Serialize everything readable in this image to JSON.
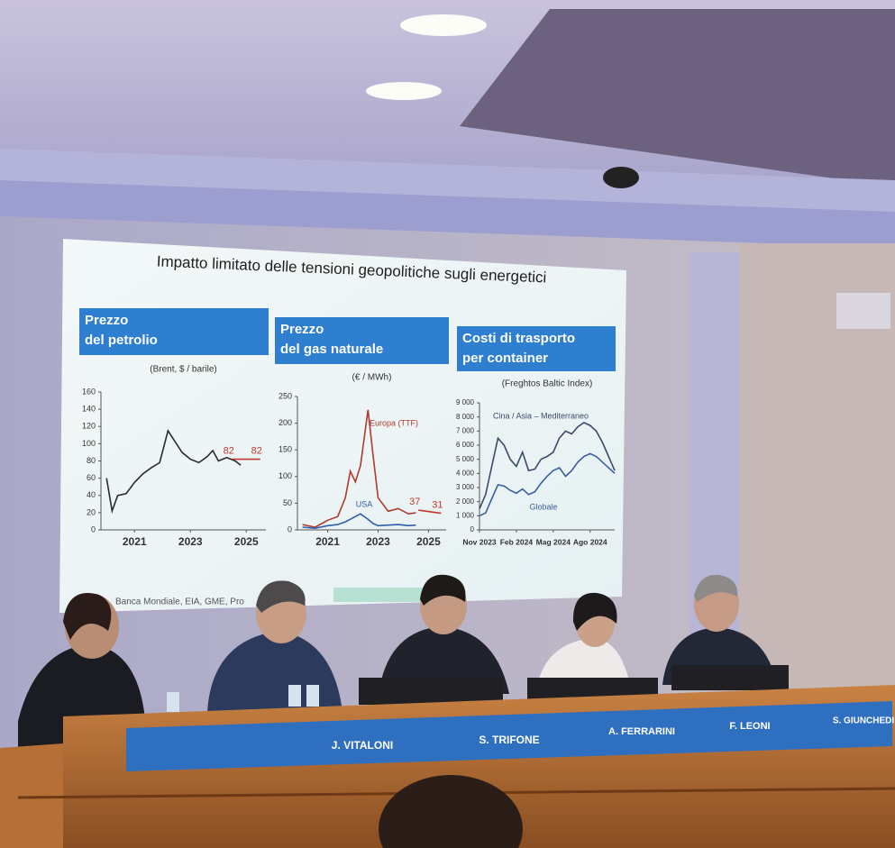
{
  "slide": {
    "title": "Impatto limitato delle tensioni geopolitiche sugli energetici",
    "source": "Banca Mondiale, EIA, GME, Pro"
  },
  "chart_data": [
    {
      "type": "line",
      "title": [
        "Prezzo",
        "del petrolio"
      ],
      "subtitle": "(Brent, $ / barile)",
      "xlim": [
        2019.8,
        2025.7
      ],
      "xticks": [
        2021,
        2023,
        2025
      ],
      "ylim": [
        0,
        160
      ],
      "yticks": [
        0,
        20,
        40,
        60,
        80,
        100,
        120,
        140,
        160
      ],
      "series": [
        {
          "color": "#2b2b2b",
          "x": [
            2020,
            2020.2,
            2020.4,
            2020.7,
            2021,
            2021.3,
            2021.6,
            2021.9,
            2022.2,
            2022.4,
            2022.7,
            2023,
            2023.3,
            2023.6,
            2023.8,
            2024,
            2024.3,
            2024.6,
            2024.8
          ],
          "values": [
            60,
            22,
            40,
            42,
            55,
            65,
            72,
            78,
            115,
            105,
            90,
            82,
            78,
            85,
            92,
            80,
            84,
            80,
            75
          ]
        },
        {
          "color": "#c0392b",
          "show_labels": true,
          "x": [
            2024.5,
            2025.5
          ],
          "values": [
            82,
            82
          ]
        }
      ]
    },
    {
      "type": "line",
      "title": [
        "Prezzo",
        "del gas naturale"
      ],
      "subtitle": "(€ / MWh)",
      "xlim": [
        2019.8,
        2025.7
      ],
      "xticks": [
        2021,
        2023,
        2025
      ],
      "ylim": [
        0,
        250
      ],
      "yticks": [
        0,
        50,
        100,
        150,
        200,
        250
      ],
      "series": [
        {
          "name": "Europa (TTF)",
          "color": "#b03a2e",
          "x": [
            2020,
            2020.5,
            2021,
            2021.4,
            2021.7,
            2021.9,
            2022.1,
            2022.3,
            2022.6,
            2022.8,
            2023,
            2023.4,
            2023.8,
            2024.2,
            2024.5
          ],
          "values": [
            10,
            5,
            18,
            25,
            60,
            110,
            90,
            120,
            225,
            140,
            60,
            35,
            40,
            30,
            32
          ]
        },
        {
          "name": "USA",
          "color": "#2f5fa8",
          "x": [
            2020,
            2020.5,
            2021,
            2021.4,
            2021.7,
            2021.9,
            2022.1,
            2022.3,
            2022.6,
            2022.8,
            2023,
            2023.4,
            2023.8,
            2024.2,
            2024.5
          ],
          "values": [
            5,
            3,
            8,
            10,
            15,
            20,
            25,
            30,
            20,
            12,
            8,
            9,
            10,
            8,
            9
          ]
        },
        {
          "color": "#c0392b",
          "show_labels": true,
          "x": [
            2024.6,
            2025.5
          ],
          "values": [
            37,
            31
          ]
        }
      ]
    },
    {
      "type": "line",
      "title": [
        "Costi di trasporto",
        "per container"
      ],
      "subtitle": "(Freghtos Baltic Index)",
      "xlim": [
        0,
        11
      ],
      "xticks": [
        {
          "value": 0,
          "label": "Nov 2023"
        },
        {
          "value": 3,
          "label": "Feb 2024"
        },
        {
          "value": 6,
          "label": "Mag 2024"
        },
        {
          "value": 9,
          "label": "Ago 2024"
        }
      ],
      "ylim": [
        0,
        9000
      ],
      "yticks": [
        0,
        {
          "value": 1000,
          "label": "1 000"
        },
        {
          "value": 2000,
          "label": "2 000"
        },
        {
          "value": 3000,
          "label": "3 000"
        },
        {
          "value": 4000,
          "label": "4 000"
        },
        {
          "value": 5000,
          "label": "5 000"
        },
        {
          "value": 6000,
          "label": "6 000"
        },
        {
          "value": 7000,
          "label": "7 000"
        },
        {
          "value": 8000,
          "label": "8 000"
        },
        {
          "value": 9000,
          "label": "9 000"
        }
      ],
      "series": [
        {
          "name": "Cina / Asia – Mediterraneo",
          "color": "#3a4a6a",
          "x": [
            0,
            0.5,
            1,
            1.5,
            2,
            2.5,
            3,
            3.5,
            4,
            4.5,
            5,
            5.5,
            6,
            6.5,
            7,
            7.5,
            8,
            8.5,
            9,
            9.5,
            10,
            10.5,
            11
          ],
          "values": [
            1500,
            2500,
            4500,
            6500,
            6000,
            5000,
            4500,
            5500,
            4200,
            4300,
            5000,
            5200,
            5500,
            6500,
            7000,
            6800,
            7300,
            7600,
            7400,
            7000,
            6200,
            5200,
            4200
          ]
        },
        {
          "name": "Globale",
          "color": "#3a5fa0",
          "x": [
            0,
            0.5,
            1,
            1.5,
            2,
            2.5,
            3,
            3.5,
            4,
            4.5,
            5,
            5.5,
            6,
            6.5,
            7,
            7.5,
            8,
            8.5,
            9,
            9.5,
            10,
            10.5,
            11
          ],
          "values": [
            1000,
            1200,
            2200,
            3200,
            3100,
            2800,
            2600,
            2900,
            2500,
            2700,
            3300,
            3800,
            4200,
            4400,
            3800,
            4200,
            4800,
            5200,
            5400,
            5200,
            4800,
            4400,
            4000
          ]
        }
      ]
    }
  ],
  "name_plates": [
    "J. VITALONI",
    "S. TRIFONE",
    "A. FERRARINI",
    "F. LEONI",
    "S. GIUNCHEDI"
  ]
}
